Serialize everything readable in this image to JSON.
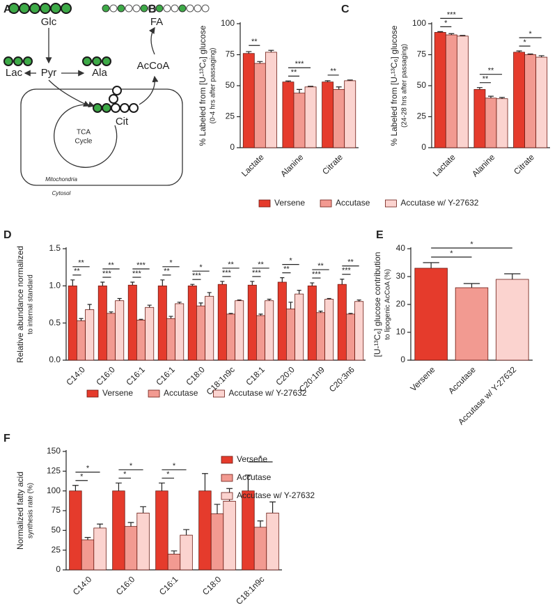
{
  "diagram": {
    "panel": "A",
    "glc": "Glc",
    "fa": "FA",
    "lac": "Lac",
    "pyr": "Pyr",
    "ala": "Ala",
    "accoa": "AcCoA",
    "cit": "Cit",
    "tca": [
      "TCA",
      "Cycle"
    ],
    "mitochondria": "Mitochondria",
    "cytosol": "Cytosol"
  },
  "chart_data": [
    {
      "type": "bar",
      "panel": "B",
      "ylabel": [
        "% Labeled from [U-¹³C₆] glucose",
        "(0-4 hrs after passaging)"
      ],
      "categories": [
        "Lactate",
        "Alanine",
        "Citrate"
      ],
      "ylim": [
        0,
        100
      ],
      "yticks": [
        0,
        25,
        50,
        75,
        100
      ],
      "legend": "bottom",
      "series": [
        {
          "name": "Versene",
          "color": "#e53b2c",
          "values": [
            76,
            53,
            53
          ],
          "errors": [
            1.5,
            0.8,
            1
          ]
        },
        {
          "name": "Accutase",
          "color": "#f29a91",
          "values": [
            68,
            44,
            47
          ],
          "errors": [
            1.5,
            3,
            2
          ],
          "significance": [
            "**",
            "**",
            "**"
          ]
        },
        {
          "name": "Accutase w/ Y-27632",
          "color": "#fbd3cf",
          "values": [
            77,
            49,
            54
          ],
          "errors": [
            1.5,
            0.5,
            0.6
          ],
          "significance": [
            null,
            "***",
            null
          ]
        }
      ]
    },
    {
      "type": "bar",
      "panel": "C",
      "ylabel": [
        "% Labeled from [U-¹³C₆] glucose",
        "(24-28 hrs after passaging)"
      ],
      "categories": [
        "Lactate",
        "Alanine",
        "Citrate"
      ],
      "ylim": [
        0,
        100
      ],
      "yticks": [
        0,
        25,
        50,
        75,
        100
      ],
      "series": [
        {
          "color": "#e53b2c",
          "values": [
            93,
            47,
            77
          ],
          "errors": [
            0.6,
            1.5,
            1
          ]
        },
        {
          "color": "#f29a91",
          "values": [
            91,
            40,
            75
          ],
          "errors": [
            1,
            1.5,
            0.6
          ],
          "significance": [
            "*",
            "**",
            "*"
          ]
        },
        {
          "color": "#fbd3cf",
          "values": [
            90,
            39.5,
            73
          ],
          "errors": [
            0.5,
            1,
            1.2
          ],
          "significance": [
            "***",
            "**",
            "*"
          ]
        }
      ]
    },
    {
      "type": "bar",
      "panel": "D",
      "ylabel": [
        "Relative abundance normalized",
        "to internal standard"
      ],
      "categories": [
        "C14:0",
        "C16:0",
        "C16:1",
        "C16:1",
        "C18:0",
        "C18:1n9c",
        "C18:1",
        "C20:0",
        "C20:1n9",
        "C20:3n6"
      ],
      "ylim": [
        0,
        1.5
      ],
      "yticks": [
        {
          "value": 0,
          "label": "0.0"
        },
        0.5,
        {
          "value": 1,
          "label": "1.0"
        },
        1.5
      ],
      "legend": "bottom",
      "series": [
        {
          "name": "Versene",
          "color": "#e53b2c",
          "values": [
            1.0,
            1.0,
            1.01,
            1.0,
            1.0,
            1.02,
            1.01,
            1.05,
            1.0,
            1.02
          ],
          "errors": [
            0.08,
            0.05,
            0.04,
            0.08,
            0.02,
            0.04,
            0.05,
            0.06,
            0.04,
            0.07
          ]
        },
        {
          "name": "Accutase",
          "color": "#f29a91",
          "values": [
            0.53,
            0.63,
            0.54,
            0.56,
            0.73,
            0.62,
            0.6,
            0.69,
            0.64,
            0.62
          ],
          "errors": [
            0.03,
            0.02,
            0.01,
            0.03,
            0.04,
            0.01,
            0.02,
            0.09,
            0.02,
            0.01
          ],
          "significance": [
            "**",
            "***",
            "***",
            "**",
            "***",
            "***",
            "***",
            "**",
            "***",
            "***"
          ]
        },
        {
          "name": "Accutase w/ Y-27632",
          "color": "#fbd3cf",
          "values": [
            0.68,
            0.8,
            0.71,
            0.76,
            0.86,
            0.8,
            0.8,
            0.89,
            0.82,
            0.79
          ],
          "errors": [
            0.07,
            0.03,
            0.03,
            0.02,
            0.05,
            0.01,
            0.02,
            0.05,
            0.01,
            0.02
          ],
          "significance": [
            "**",
            "**",
            "***",
            "*",
            "*",
            "**",
            "**",
            "*",
            "**",
            "**"
          ]
        }
      ]
    },
    {
      "type": "bar",
      "panel": "E",
      "ylabel": [
        "[U-¹³C₆] glucose contribution",
        "to lipogenic AcCoA (%)"
      ],
      "categories": [
        "Versene",
        "Accutase",
        "Accutase w/ Y-27632"
      ],
      "ylim": [
        0,
        40
      ],
      "yticks": [
        0,
        10,
        20,
        30,
        40
      ],
      "values": [
        33,
        26,
        29
      ],
      "errors": [
        2,
        1.5,
        2
      ],
      "colors": [
        "#e53b2c",
        "#f29a91",
        "#fbd3cf"
      ],
      "significance": [
        null,
        "*",
        "*"
      ]
    },
    {
      "type": "bar",
      "panel": "F",
      "ylabel": [
        "Normalized fatty acid",
        "synthesis rate (%)"
      ],
      "categories": [
        "C14:0",
        "C16:0",
        "C16:1",
        "C18:0",
        "C18:1n9c"
      ],
      "ylim": [
        0,
        150
      ],
      "yticks": [
        0,
        25,
        50,
        75,
        100,
        125,
        150
      ],
      "legend": "right",
      "series": [
        {
          "name": "Versene",
          "color": "#e53b2c",
          "values": [
            100,
            100,
            100,
            100,
            100
          ],
          "errors": [
            7,
            10,
            10,
            22,
            20
          ]
        },
        {
          "name": "Accutase",
          "color": "#f29a91",
          "values": [
            38,
            55,
            20,
            71,
            54
          ],
          "errors": [
            3,
            5,
            4,
            12,
            8
          ],
          "significance": [
            "*",
            "*",
            "*",
            null,
            null
          ]
        },
        {
          "name": "Accutase w/ Y-27632",
          "color": "#fbd3cf",
          "values": [
            53,
            72,
            44,
            87,
            72
          ],
          "errors": [
            5,
            8,
            7,
            16,
            14
          ],
          "significance": [
            "*",
            "*",
            "*",
            null,
            "*"
          ]
        }
      ]
    }
  ]
}
